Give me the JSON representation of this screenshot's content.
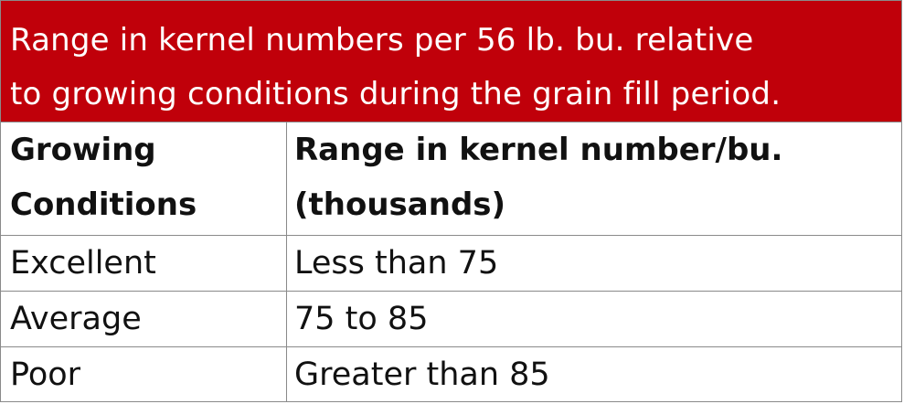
{
  "title": {
    "line1": "Range in kernel numbers per 56 lb. bu. relative",
    "line2": "to growing conditions during the grain fill period."
  },
  "colors": {
    "title_background": "#c0000a",
    "title_text": "#ffffff",
    "grid_lines": "#8a8a8a"
  },
  "table": {
    "headers": {
      "col1_line1": "Growing",
      "col1_line2": "Conditions",
      "col2_line1": "Range in kernel number/bu.",
      "col2_line2": "(thousands)"
    },
    "rows": [
      {
        "condition": "Excellent",
        "range": "Less than 75"
      },
      {
        "condition": "Average",
        "range": "75 to 85"
      },
      {
        "condition": "Poor",
        "range": "Greater than 85"
      }
    ]
  }
}
